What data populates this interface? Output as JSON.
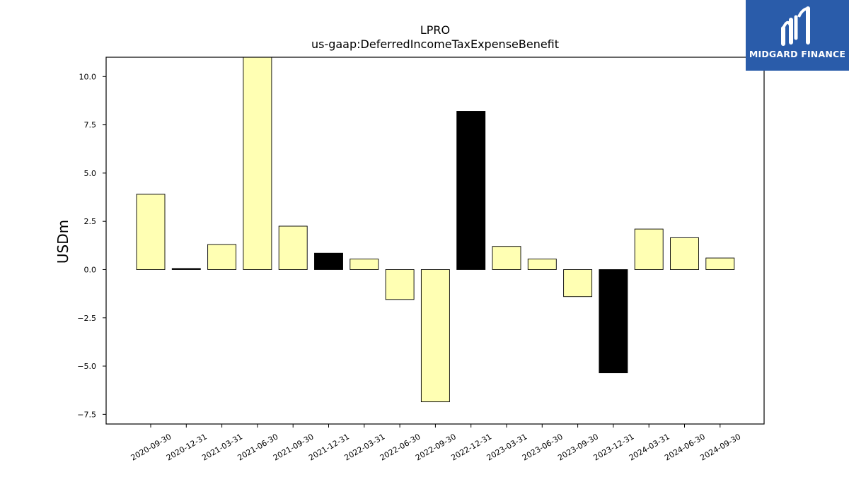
{
  "chart_data": {
    "type": "bar",
    "title": "LPRO",
    "subtitle": "us-gaap:DeferredIncomeTaxExpenseBenefit",
    "xlabel": "",
    "ylabel": "USDm",
    "ylim": [
      -8.0,
      11.0
    ],
    "yticks": [
      10.0,
      7.5,
      5.0,
      2.5,
      0.0,
      -2.5,
      -5.0,
      -7.5
    ],
    "ytick_labels": [
      "10.0",
      "7.5",
      "5.0",
      "2.5",
      "0.0",
      "−2.5",
      "−5.0",
      "−7.5"
    ],
    "grid": false,
    "categories": [
      "2020-09-30",
      "2020-12-31",
      "2021-03-31",
      "2021-06-30",
      "2021-09-30",
      "2021-12-31",
      "2022-03-31",
      "2022-06-30",
      "2022-09-30",
      "2022-12-31",
      "2023-03-31",
      "2023-06-30",
      "2023-09-30",
      "2023-12-31",
      "2024-03-31",
      "2024-06-30",
      "2024-09-30"
    ],
    "values": [
      3.9,
      0.05,
      1.3,
      11.0,
      2.25,
      0.85,
      0.55,
      -1.55,
      -6.85,
      8.2,
      1.2,
      0.55,
      -1.4,
      -5.35,
      2.1,
      1.65,
      0.6
    ],
    "bar_colors": [
      "#ffffb3",
      "#000000",
      "#ffffb3",
      "#ffffb3",
      "#ffffb3",
      "#000000",
      "#ffffb3",
      "#ffffb3",
      "#ffffb3",
      "#000000",
      "#ffffb3",
      "#ffffb3",
      "#ffffb3",
      "#000000",
      "#ffffb3",
      "#ffffb3",
      "#ffffb3"
    ]
  },
  "logo": {
    "text": "MIDGARD FINANCE",
    "background": "#2a5caa"
  }
}
